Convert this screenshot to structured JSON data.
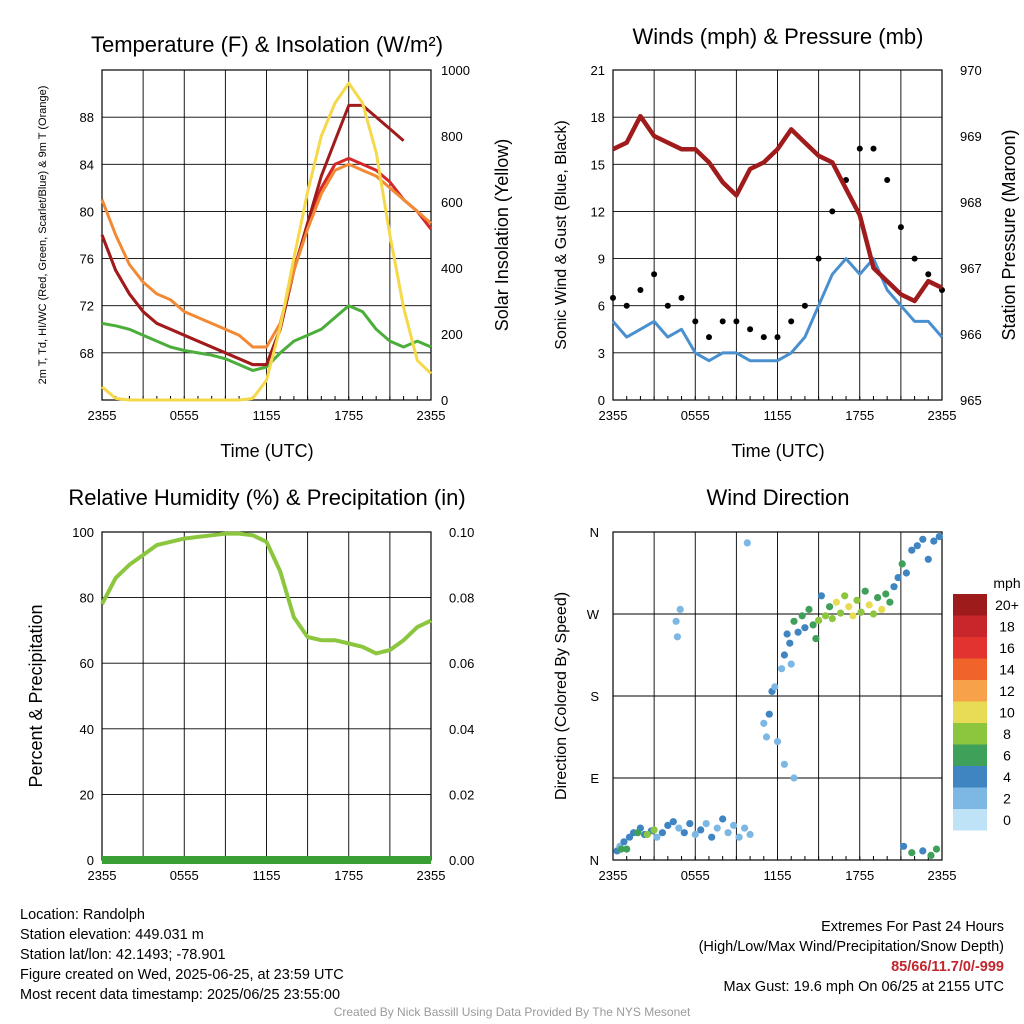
{
  "titles": {
    "temp": "Temperature (F) & Insolation (W/m²)",
    "wind": "Winds (mph) & Pressure (mb)",
    "rh": "Relative Humidity (%) & Precipitation (in)",
    "wdir": "Wind Direction"
  },
  "chart_data": [
    {
      "type": "line",
      "title": "Temperature (F) & Insolation (W/m²)",
      "xlabel": "Time (UTC)",
      "ylabel_left": "2m T, Td, HI/WC (Red, Green, Scarlet/Blue) & 9m T (Orange)",
      "ylabel_right": "Solar Insolation (Yellow)",
      "x_ticks": [
        "2355",
        "0555",
        "1155",
        "1755",
        "2355"
      ],
      "ylim_left": [
        64,
        92
      ],
      "y_ticks_left": [
        68,
        72,
        76,
        80,
        84,
        88
      ],
      "ylim_right": [
        0,
        1000
      ],
      "y_ticks_right": [
        0,
        200,
        400,
        600,
        800,
        1000
      ],
      "grid": true,
      "series_x_hours": [
        0,
        1,
        2,
        3,
        4,
        5,
        6,
        7,
        8,
        9,
        10,
        11,
        12,
        13,
        14,
        15,
        16,
        17,
        18,
        19,
        20,
        21,
        22,
        23,
        24
      ],
      "series": [
        {
          "name": "2m T",
          "color": "#d62728",
          "axis": "left",
          "values": [
            78,
            75,
            73,
            71.5,
            70.5,
            70,
            69.5,
            69,
            68.5,
            68,
            67.5,
            67,
            67,
            70,
            75,
            79,
            82,
            84,
            84.5,
            84,
            83.5,
            82.5,
            81,
            80,
            78.5
          ]
        },
        {
          "name": "Td",
          "color": "#4bae3a",
          "axis": "left",
          "values": [
            70.5,
            70.3,
            70,
            69.5,
            69,
            68.5,
            68.2,
            68,
            67.8,
            67.5,
            67,
            66.5,
            66.8,
            68,
            69,
            69.5,
            70,
            71,
            72,
            71.5,
            70,
            69,
            68.5,
            69,
            68.5
          ]
        },
        {
          "name": "HI/WC",
          "color": "#a01c1c",
          "axis": "left",
          "values": [
            78,
            75,
            73,
            71.5,
            70.5,
            70,
            69.5,
            69,
            68.5,
            68,
            67.5,
            67,
            67,
            70,
            75,
            79,
            83,
            86,
            89,
            89,
            88,
            87,
            86,
            null,
            null
          ]
        },
        {
          "name": "9m T",
          "color": "#f28a35",
          "axis": "left",
          "values": [
            81,
            78,
            75.5,
            74,
            73,
            72.5,
            71.5,
            71,
            70.5,
            70,
            69.5,
            68.5,
            68.5,
            70.5,
            75,
            78.5,
            81.5,
            83.5,
            84,
            83.5,
            83,
            82,
            81,
            80,
            79
          ]
        },
        {
          "name": "Solar Insolation",
          "color": "#f5d94a",
          "axis": "right",
          "values": [
            40,
            5,
            0,
            0,
            0,
            0,
            0,
            0,
            0,
            0,
            0,
            5,
            60,
            220,
            430,
            630,
            800,
            900,
            960,
            900,
            750,
            500,
            280,
            120,
            80
          ]
        }
      ]
    },
    {
      "type": "line",
      "title": "Winds (mph) & Pressure (mb)",
      "xlabel": "Time (UTC)",
      "ylabel_left": "Sonic Wind & Gust (Blue, Black)",
      "ylabel_right": "Station Pressure (Maroon)",
      "x_ticks": [
        "2355",
        "0555",
        "1155",
        "1755",
        "2355"
      ],
      "ylim_left": [
        0,
        21
      ],
      "y_ticks_left": [
        0,
        3,
        6,
        9,
        12,
        15,
        18,
        21
      ],
      "ylim_right": [
        965,
        970
      ],
      "y_ticks_right": [
        965,
        966,
        967,
        968,
        969,
        970
      ],
      "grid": true,
      "series_x_hours": [
        0,
        1,
        2,
        3,
        4,
        5,
        6,
        7,
        8,
        9,
        10,
        11,
        12,
        13,
        14,
        15,
        16,
        17,
        18,
        19,
        20,
        21,
        22,
        23,
        24
      ],
      "series": [
        {
          "name": "Sonic Wind",
          "color": "#4a90cf",
          "axis": "left",
          "values": [
            5,
            4,
            4.5,
            5,
            4,
            4.5,
            3,
            2.5,
            3,
            3,
            2.5,
            2.5,
            2.5,
            3,
            4,
            6,
            8,
            9,
            8,
            9,
            7,
            6,
            5,
            5,
            4
          ]
        },
        {
          "name": "Gust",
          "color": "#000000",
          "axis": "left",
          "values": [
            6.5,
            6,
            7,
            8,
            6,
            6.5,
            5,
            4,
            5,
            5,
            4.5,
            4,
            4,
            5,
            6,
            9,
            12,
            14,
            16,
            16,
            14,
            11,
            9,
            8,
            7
          ]
        },
        {
          "name": "Station Pressure",
          "color": "#a01c1c",
          "axis": "right",
          "values": [
            968.8,
            968.9,
            969.3,
            969.0,
            968.9,
            968.8,
            968.8,
            968.6,
            968.3,
            968.1,
            968.5,
            968.6,
            968.8,
            969.1,
            968.9,
            968.7,
            968.6,
            968.2,
            967.8,
            967.0,
            966.8,
            966.6,
            966.5,
            966.8,
            966.7
          ]
        }
      ]
    },
    {
      "type": "line",
      "title": "Relative Humidity (%) & Precipitation (in)",
      "ylabel_left": "Percent & Precipitation",
      "x_ticks": [
        "2355",
        "0555",
        "1155",
        "1755",
        "2355"
      ],
      "ylim_left": [
        0,
        100
      ],
      "y_ticks_left": [
        0,
        20,
        40,
        60,
        80,
        100
      ],
      "ylim_right": [
        0,
        0.1
      ],
      "y_ticks_right": [
        "0.00",
        "0.02",
        "0.04",
        "0.06",
        "0.08",
        "0.10"
      ],
      "grid": true,
      "series_x_hours": [
        0,
        1,
        2,
        3,
        4,
        5,
        6,
        7,
        8,
        9,
        10,
        11,
        12,
        13,
        14,
        15,
        16,
        17,
        18,
        19,
        20,
        21,
        22,
        23,
        24
      ],
      "series": [
        {
          "name": "Relative Humidity",
          "color": "#8cc63f",
          "axis": "left",
          "values": [
            78,
            86,
            90,
            93,
            96,
            97,
            98,
            98.5,
            99,
            99.5,
            99.5,
            99,
            97,
            88,
            74,
            68,
            67,
            67,
            66,
            65,
            63,
            64,
            67,
            71,
            73
          ]
        },
        {
          "name": "Precipitation",
          "color": "#3aa035",
          "axis": "right",
          "values": [
            0,
            0,
            0,
            0,
            0,
            0,
            0,
            0,
            0,
            0,
            0,
            0,
            0,
            0,
            0,
            0,
            0,
            0,
            0,
            0,
            0,
            0,
            0,
            0,
            0
          ]
        }
      ]
    },
    {
      "type": "scatter",
      "title": "Wind Direction",
      "ylabel": "Direction (Colored By Speed)",
      "x_ticks": [
        "2355",
        "0555",
        "1155",
        "1755",
        "2355"
      ],
      "y_ticks": [
        "N",
        "E",
        "S",
        "W",
        "N"
      ],
      "ylim_degrees": [
        0,
        360
      ],
      "grid": true,
      "legend": {
        "title": "mph",
        "labels": [
          "20+",
          "18",
          "16",
          "14",
          "12",
          "10",
          "8",
          "6",
          "4",
          "2",
          "0"
        ],
        "colors": [
          "#9e1b1b",
          "#c8262a",
          "#e2332f",
          "#f0642b",
          "#f7a24a",
          "#e8dc57",
          "#8cc63f",
          "#3fa05a",
          "#3f85c2",
          "#7db8e4",
          "#bfe3f6"
        ]
      },
      "points": [
        [
          0.3,
          10,
          4
        ],
        [
          0.5,
          15,
          2
        ],
        [
          0.8,
          20,
          4
        ],
        [
          1.2,
          25,
          4
        ],
        [
          1.5,
          30,
          3
        ],
        [
          2.0,
          35,
          4
        ],
        [
          2.3,
          28,
          4
        ],
        [
          2.8,
          32,
          3
        ],
        [
          3.2,
          25,
          2
        ],
        [
          3.6,
          30,
          4
        ],
        [
          4.0,
          38,
          3
        ],
        [
          4.4,
          42,
          4
        ],
        [
          4.8,
          35,
          2
        ],
        [
          5.2,
          30,
          3
        ],
        [
          5.6,
          40,
          4
        ],
        [
          6.0,
          28,
          2
        ],
        [
          6.4,
          33,
          3
        ],
        [
          6.8,
          40,
          2
        ],
        [
          7.2,
          25,
          3
        ],
        [
          7.6,
          35,
          2
        ],
        [
          8.0,
          45,
          4
        ],
        [
          8.4,
          30,
          2
        ],
        [
          8.8,
          38,
          2
        ],
        [
          9.2,
          25,
          2
        ],
        [
          9.6,
          35,
          2
        ],
        [
          10.0,
          28,
          1
        ],
        [
          1.8,
          30,
          6
        ],
        [
          2.5,
          28,
          7
        ],
        [
          3.0,
          33,
          7
        ],
        [
          1.0,
          12,
          6
        ],
        [
          0.6,
          12,
          5
        ],
        [
          4.6,
          262,
          1
        ],
        [
          4.7,
          245,
          1
        ],
        [
          4.9,
          275,
          1
        ],
        [
          11.0,
          150,
          2
        ],
        [
          11.2,
          135,
          2
        ],
        [
          11.4,
          160,
          3
        ],
        [
          11.6,
          185,
          3
        ],
        [
          11.8,
          190,
          2
        ],
        [
          12.0,
          130,
          1
        ],
        [
          12.3,
          210,
          2
        ],
        [
          12.5,
          225,
          3
        ],
        [
          12.7,
          248,
          3
        ],
        [
          12.9,
          238,
          4
        ],
        [
          13.0,
          215,
          1
        ],
        [
          13.2,
          262,
          5
        ],
        [
          13.5,
          250,
          4
        ],
        [
          13.8,
          268,
          5
        ],
        [
          14.0,
          255,
          3
        ],
        [
          14.3,
          275,
          6
        ],
        [
          14.6,
          258,
          6
        ],
        [
          14.8,
          243,
          5
        ],
        [
          15.0,
          263,
          7
        ],
        [
          15.2,
          290,
          4
        ],
        [
          15.5,
          268,
          7
        ],
        [
          15.8,
          278,
          6
        ],
        [
          16.0,
          265,
          8
        ],
        [
          16.3,
          283,
          9
        ],
        [
          16.6,
          271,
          7
        ],
        [
          16.9,
          290,
          8
        ],
        [
          17.2,
          278,
          9
        ],
        [
          17.5,
          268,
          9
        ],
        [
          17.8,
          285,
          7
        ],
        [
          18.1,
          272,
          8
        ],
        [
          18.4,
          295,
          6
        ],
        [
          18.7,
          280,
          9
        ],
        [
          19.0,
          270,
          8
        ],
        [
          19.3,
          288,
          6
        ],
        [
          19.6,
          275,
          9
        ],
        [
          19.9,
          292,
          5
        ],
        [
          20.2,
          283,
          6
        ],
        [
          20.5,
          300,
          4
        ],
        [
          20.8,
          310,
          4
        ],
        [
          21.1,
          325,
          5
        ],
        [
          21.4,
          315,
          4
        ],
        [
          21.8,
          340,
          4
        ],
        [
          22.2,
          345,
          3
        ],
        [
          22.6,
          352,
          3
        ],
        [
          23.0,
          330,
          4
        ],
        [
          23.4,
          350,
          3
        ],
        [
          23.8,
          355,
          3
        ],
        [
          9.8,
          348,
          1
        ],
        [
          12.5,
          105,
          2
        ],
        [
          13.2,
          90,
          1
        ],
        [
          21.2,
          15,
          4
        ],
        [
          21.8,
          8,
          5
        ],
        [
          22.6,
          10,
          4
        ],
        [
          23.6,
          12,
          5
        ],
        [
          23.2,
          5,
          6
        ]
      ]
    }
  ],
  "info": {
    "location": "Location: Randolph",
    "elevation": "Station elevation: 449.031 m",
    "latlon": "Station lat/lon: 42.1493; -78.901",
    "created": "Figure created on Wed, 2025-06-25, at 23:59 UTC",
    "recent": "Most recent data timestamp: 2025/06/25 23:55:00"
  },
  "extremes": {
    "title": "Extremes For Past 24 Hours",
    "subtitle": "(High/Low/Max Wind/Precipitation/Snow Depth)",
    "values": "85/66/11.7/0/-999",
    "gust": "Max Gust: 19.6 mph On 06/25 at 2155 UTC"
  },
  "credit": "Created By Nick Bassill Using Data Provided By The NYS Mesonet"
}
